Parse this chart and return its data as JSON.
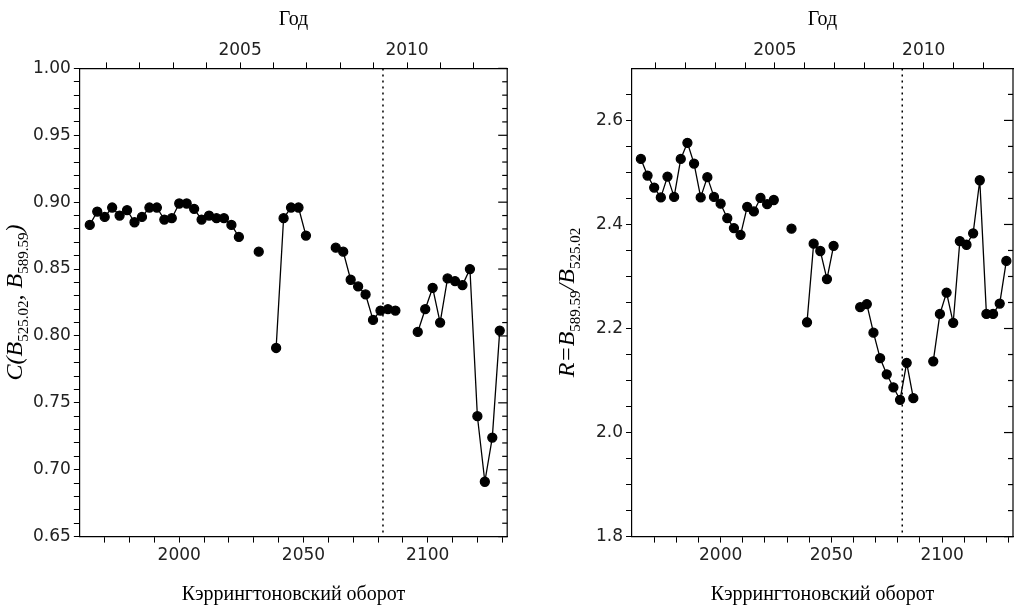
{
  "chart_data": [
    {
      "type": "line",
      "marker": "circle",
      "line_style": "solid",
      "legend": false,
      "grid": false,
      "xlabel": "Кэррингтоновский оборот",
      "x2label": "Год",
      "ylabel": "C(B$_{525.02}$, B$_{589.59}$)",
      "xlim": [
        1960,
        2132
      ],
      "xticks": [
        {
          "value": 1970,
          "label": null
        },
        {
          "value": 1980,
          "label": null
        },
        {
          "value": 1990,
          "label": null
        },
        2000,
        {
          "value": 2010,
          "label": null
        },
        {
          "value": 2020,
          "label": null
        },
        {
          "value": 2030,
          "label": null
        },
        {
          "value": 2040,
          "label": null
        },
        2050,
        {
          "value": 2060,
          "label": null
        },
        {
          "value": 2070,
          "label": null
        },
        {
          "value": 2080,
          "label": null
        },
        {
          "value": 2090,
          "label": null
        },
        2100,
        {
          "value": 2110,
          "label": null
        },
        {
          "value": 2120,
          "label": null
        },
        {
          "value": 2130,
          "label": null
        }
      ],
      "x2lim": [
        2000.2,
        2013.0
      ],
      "x2ticks": [
        {
          "value": 2001,
          "label": null
        },
        {
          "value": 2002,
          "label": null
        },
        {
          "value": 2003,
          "label": null
        },
        {
          "value": 2004,
          "label": null
        },
        {
          "value": 2005,
          "label": "2005"
        },
        {
          "value": 2006,
          "label": null
        },
        {
          "value": 2007,
          "label": null
        },
        {
          "value": 2008,
          "label": null
        },
        {
          "value": 2009,
          "label": null
        },
        {
          "value": 2010,
          "label": "2010"
        },
        {
          "value": 2011,
          "label": null
        },
        {
          "value": 2012,
          "label": null
        }
      ],
      "ylim": [
        0.65,
        1.0
      ],
      "yticks": [
        {
          "value": 0.65,
          "label": "0.65"
        },
        {
          "value": 0.66,
          "label": null
        },
        {
          "value": 0.67,
          "label": null
        },
        {
          "value": 0.68,
          "label": null
        },
        {
          "value": 0.69,
          "label": null
        },
        {
          "value": 0.7,
          "label": "0.70"
        },
        {
          "value": 0.71,
          "label": null
        },
        {
          "value": 0.72,
          "label": null
        },
        {
          "value": 0.73,
          "label": null
        },
        {
          "value": 0.74,
          "label": null
        },
        {
          "value": 0.75,
          "label": "0.75"
        },
        {
          "value": 0.76,
          "label": null
        },
        {
          "value": 0.77,
          "label": null
        },
        {
          "value": 0.78,
          "label": null
        },
        {
          "value": 0.79,
          "label": null
        },
        {
          "value": 0.8,
          "label": "0.80"
        },
        {
          "value": 0.81,
          "label": null
        },
        {
          "value": 0.82,
          "label": null
        },
        {
          "value": 0.83,
          "label": null
        },
        {
          "value": 0.84,
          "label": null
        },
        {
          "value": 0.85,
          "label": "0.85"
        },
        {
          "value": 0.86,
          "label": null
        },
        {
          "value": 0.87,
          "label": null
        },
        {
          "value": 0.88,
          "label": null
        },
        {
          "value": 0.89,
          "label": null
        },
        {
          "value": 0.9,
          "label": "0.90"
        },
        {
          "value": 0.91,
          "label": null
        },
        {
          "value": 0.92,
          "label": null
        },
        {
          "value": 0.93,
          "label": null
        },
        {
          "value": 0.94,
          "label": null
        },
        {
          "value": 0.95,
          "label": "0.95"
        },
        {
          "value": 0.96,
          "label": null
        },
        {
          "value": 0.97,
          "label": null
        },
        {
          "value": 0.98,
          "label": null
        },
        {
          "value": 0.99,
          "label": null
        },
        {
          "value": 1.0,
          "label": "1.00"
        }
      ],
      "ref_lines": [
        {
          "axis": "x",
          "value": 2082,
          "line_style": "dotted",
          "color": "#000000"
        }
      ],
      "series": [
        {
          "color": "#000000",
          "x": [
            1964,
            1967,
            1970,
            1973,
            1976,
            1979,
            1982,
            1985,
            1988,
            1991,
            1994,
            1997,
            2000,
            2003,
            2006,
            2009,
            2012,
            2015,
            2018,
            2021,
            2024
          ],
          "values": [
            0.883,
            0.893,
            0.889,
            0.896,
            0.89,
            0.894,
            0.885,
            0.889,
            0.896,
            0.896,
            0.887,
            0.888,
            0.899,
            0.899,
            0.895,
            0.887,
            0.89,
            0.888,
            0.888,
            0.883,
            0.874
          ]
        },
        {
          "color": "#000000",
          "x": [
            2032
          ],
          "values": [
            0.863
          ]
        },
        {
          "color": "#000000",
          "x": [
            2039,
            2042,
            2045,
            2048,
            2051
          ],
          "values": [
            0.791,
            0.888,
            0.896,
            0.896,
            0.875
          ]
        },
        {
          "color": "#000000",
          "x": [
            2063,
            2066,
            2069,
            2072,
            2075,
            2078,
            2081,
            2084,
            2087
          ],
          "values": [
            0.866,
            0.863,
            0.842,
            0.837,
            0.831,
            0.812,
            0.819,
            0.82,
            0.819
          ]
        },
        {
          "color": "#000000",
          "x": [
            2096,
            2099,
            2102,
            2105,
            2108,
            2111,
            2114,
            2117,
            2120,
            2123,
            2126,
            2129
          ],
          "values": [
            0.803,
            0.82,
            0.836,
            0.81,
            0.843,
            0.841,
            0.838,
            0.85,
            0.74,
            0.691,
            0.724,
            0.804
          ]
        }
      ]
    },
    {
      "type": "line",
      "marker": "circle",
      "line_style": "solid",
      "legend": false,
      "grid": false,
      "xlabel": "Кэррингтоновский оборот",
      "x2label": "Год",
      "ylabel": "R=B$_{589.59}$/B$_{525.02}$",
      "xlim": [
        1960,
        2132
      ],
      "xticks": [
        {
          "value": 1970,
          "label": null
        },
        {
          "value": 1980,
          "label": null
        },
        {
          "value": 1990,
          "label": null
        },
        2000,
        {
          "value": 2010,
          "label": null
        },
        {
          "value": 2020,
          "label": null
        },
        {
          "value": 2030,
          "label": null
        },
        {
          "value": 2040,
          "label": null
        },
        2050,
        {
          "value": 2060,
          "label": null
        },
        {
          "value": 2070,
          "label": null
        },
        {
          "value": 2080,
          "label": null
        },
        {
          "value": 2090,
          "label": null
        },
        2100,
        {
          "value": 2110,
          "label": null
        },
        {
          "value": 2120,
          "label": null
        },
        {
          "value": 2130,
          "label": null
        }
      ],
      "x2lim": [
        2000.2,
        2013.0
      ],
      "x2ticks": [
        {
          "value": 2001,
          "label": null
        },
        {
          "value": 2002,
          "label": null
        },
        {
          "value": 2003,
          "label": null
        },
        {
          "value": 2004,
          "label": null
        },
        {
          "value": 2005,
          "label": "2005"
        },
        {
          "value": 2006,
          "label": null
        },
        {
          "value": 2007,
          "label": null
        },
        {
          "value": 2008,
          "label": null
        },
        {
          "value": 2009,
          "label": null
        },
        {
          "value": 2010,
          "label": "2010"
        },
        {
          "value": 2011,
          "label": null
        },
        {
          "value": 2012,
          "label": null
        }
      ],
      "ylim": [
        1.8,
        2.7
      ],
      "yticks": [
        1.8,
        {
          "value": 1.85,
          "label": null
        },
        {
          "value": 1.9,
          "label": null
        },
        {
          "value": 1.95,
          "label": null
        },
        {
          "value": 2.0,
          "label": "2.0"
        },
        {
          "value": 2.05,
          "label": null
        },
        {
          "value": 2.1,
          "label": null
        },
        {
          "value": 2.15,
          "label": null
        },
        2.2,
        {
          "value": 2.25,
          "label": null
        },
        {
          "value": 2.3,
          "label": null
        },
        {
          "value": 2.35,
          "label": null
        },
        2.4,
        {
          "value": 2.45,
          "label": null
        },
        {
          "value": 2.5,
          "label": null
        },
        {
          "value": 2.55,
          "label": null
        },
        2.6,
        {
          "value": 2.65,
          "label": null
        }
      ],
      "ref_lines": [
        {
          "axis": "x",
          "value": 2082,
          "line_style": "dotted",
          "color": "#000000"
        }
      ],
      "series": [
        {
          "color": "#000000",
          "x": [
            1964,
            1967,
            1970,
            1973,
            1976,
            1979,
            1982,
            1985,
            1988,
            1991,
            1994,
            1997,
            2000,
            2003,
            2006,
            2009,
            2012,
            2015,
            2018,
            2021,
            2024
          ],
          "values": [
            2.526,
            2.494,
            2.471,
            2.452,
            2.492,
            2.453,
            2.526,
            2.557,
            2.517,
            2.452,
            2.491,
            2.453,
            2.44,
            2.412,
            2.393,
            2.38,
            2.434,
            2.425,
            2.451,
            2.439,
            2.447
          ]
        },
        {
          "color": "#000000",
          "x": [
            2032
          ],
          "values": [
            2.392
          ]
        },
        {
          "color": "#000000",
          "x": [
            2039,
            2042,
            2045,
            2048,
            2051
          ],
          "values": [
            2.212,
            2.363,
            2.349,
            2.295,
            2.359
          ]
        },
        {
          "color": "#000000",
          "x": [
            2063,
            2066,
            2069,
            2072,
            2075,
            2078,
            2081,
            2084,
            2087
          ],
          "values": [
            2.241,
            2.247,
            2.192,
            2.143,
            2.112,
            2.087,
            2.063,
            2.134,
            2.066
          ]
        },
        {
          "color": "#000000",
          "x": [
            2096,
            2099,
            2102,
            2105,
            2108,
            2111,
            2114,
            2117,
            2120,
            2123,
            2126,
            2129
          ],
          "values": [
            2.137,
            2.228,
            2.269,
            2.211,
            2.368,
            2.361,
            2.383,
            2.485,
            2.228,
            2.228,
            2.248,
            2.33
          ]
        }
      ]
    }
  ]
}
